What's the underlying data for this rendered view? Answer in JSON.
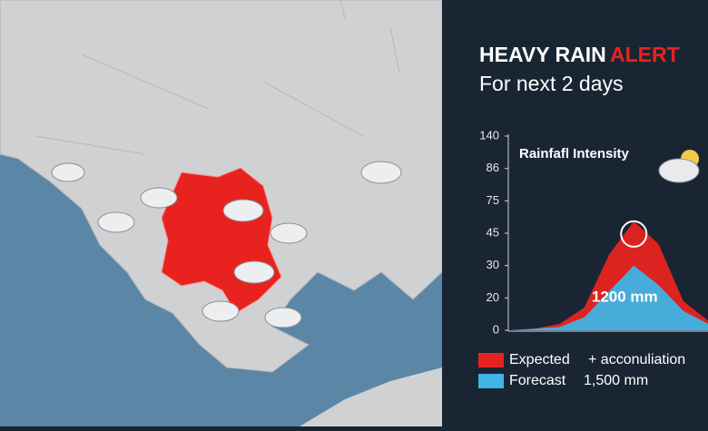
{
  "header": {
    "title_main": "HEAVY RAIN",
    "title_accent": "ALERT",
    "subtitle": "For next 2 days"
  },
  "chart_data": {
    "type": "area",
    "title": "Rainfafl Intensity",
    "series": [
      {
        "name": "Expected",
        "color": "#e8231f",
        "values": [
          0,
          1,
          4,
          14,
          35,
          56,
          40,
          18,
          6
        ]
      },
      {
        "name": "Forecast",
        "color": "#3fb4e6",
        "values": [
          0,
          1,
          2,
          8,
          22,
          30,
          24,
          12,
          4
        ]
      }
    ],
    "ylim": [
      0,
      140
    ],
    "yticks": [
      0,
      20,
      30,
      45,
      75,
      86,
      140
    ],
    "annotation": "1200 mm",
    "legend_notes": [
      "+ acconuliation",
      "1,500 mm"
    ]
  }
}
